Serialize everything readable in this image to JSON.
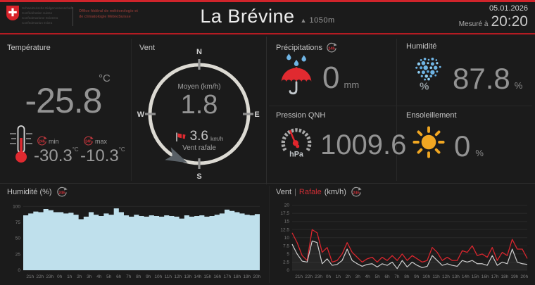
{
  "header": {
    "confederation_lines": [
      "Schweizerische Eidgenossenschaft",
      "Confédération suisse",
      "Confederazione Svizzera",
      "Confederaziun svizra"
    ],
    "office_lines": [
      "Office fédéral de météorologie et",
      "de climatologie MétéoSuisse"
    ],
    "station_name": "La Brévine",
    "altitude_icon": "mountain-triangle",
    "altitude": "1050m",
    "date": "05.01.2026",
    "measured_label": "Mesuré à",
    "measured_time": "20:20"
  },
  "panels": {
    "temperature": {
      "title": "Température",
      "unit": "°C",
      "value": "-25.8",
      "badge": "24h",
      "min_label": "min",
      "max_label": "max",
      "min_value": "-30.3",
      "min_unit": "°C",
      "max_value": "-10.3",
      "max_unit": "°C"
    },
    "wind": {
      "title": "Vent",
      "mean_label": "Moyen (km/h)",
      "mean_value": "1.8",
      "gust_value": "3.6",
      "gust_unit": "km/h",
      "gust_label": "Vent rafale",
      "compass": {
        "n": "N",
        "e": "E",
        "s": "S",
        "w": "W"
      }
    },
    "precipitation": {
      "title": "Précipitations",
      "badge": "24h",
      "value": "0",
      "unit": "mm"
    },
    "humidity": {
      "title": "Humidité",
      "value": "87.8",
      "unit": "%",
      "icon_percent": "%"
    },
    "pressure": {
      "title": "Pression QNH",
      "value": "1009.6",
      "gauge_unit": "hPa"
    },
    "sunshine": {
      "title": "Ensoleillement",
      "value": "0",
      "unit": "%"
    }
  },
  "colors": {
    "accent_red": "#d0242b",
    "chart_red": "#d8262e",
    "chart_gray": "#cfcfcf",
    "humidity_fill": "#bfe0ec",
    "sun_yellow": "#f1a722",
    "drop_blue": "#6fb4e4",
    "big_number_gray": "#939393"
  },
  "chart_data": [
    {
      "id": "humidity-history",
      "type": "area",
      "title": "Humidité (%)",
      "badge": "24h",
      "x": [
        "21h",
        "22h",
        "23h",
        "0h",
        "1h",
        "2h",
        "3h",
        "4h",
        "5h",
        "6h",
        "7h",
        "8h",
        "9h",
        "10h",
        "11h",
        "12h",
        "13h",
        "14h",
        "15h",
        "16h",
        "17h",
        "18h",
        "19h",
        "20h"
      ],
      "yticks": [
        0,
        25,
        50,
        75,
        100
      ],
      "ylim": [
        0,
        107
      ],
      "fill_color": "#bfe0ec",
      "values": [
        86,
        89,
        92,
        91,
        96,
        94,
        91,
        91,
        89,
        90,
        87,
        80,
        84,
        91,
        87,
        85,
        89,
        87,
        97,
        91,
        86,
        84,
        87,
        85,
        84,
        86,
        85,
        84,
        86,
        85,
        84,
        81,
        86,
        84,
        85,
        86,
        84,
        85,
        87,
        89,
        95,
        93,
        91,
        89,
        87,
        86,
        88,
        88
      ]
    },
    {
      "id": "wind-history",
      "type": "line",
      "legend": {
        "series1": "Vent",
        "sep": "|",
        "series2": "Rafale",
        "unit": "(km/h)"
      },
      "badge": "24h",
      "x": [
        "21h",
        "22h",
        "23h",
        "0h",
        "1h",
        "2h",
        "3h",
        "4h",
        "5h",
        "6h",
        "7h",
        "8h",
        "9h",
        "10h",
        "11h",
        "12h",
        "13h",
        "14h",
        "15h",
        "16h",
        "17h",
        "18h",
        "19h",
        "20h"
      ],
      "yticks": [
        0,
        2.5,
        5,
        7.5,
        10,
        12.5,
        15,
        17.5,
        20
      ],
      "ylim": [
        0,
        21
      ],
      "series": [
        {
          "name": "Vent",
          "color": "#cfcfcf",
          "values": [
            8.0,
            5.0,
            2.8,
            2.5,
            9.0,
            8.5,
            2.0,
            3.5,
            1.5,
            1.8,
            3.0,
            6.5,
            3.0,
            2.0,
            1.2,
            1.8,
            2.0,
            1.0,
            2.0,
            1.5,
            2.5,
            0.5,
            3.0,
            1.0,
            2.5,
            1.5,
            0.8,
            1.2,
            4.5,
            3.0,
            1.5,
            2.0,
            1.5,
            1.2,
            3.0,
            2.5,
            3.0,
            2.0,
            2.0,
            1.5,
            4.5,
            1.5,
            2.5,
            2.0,
            6.5,
            2.5,
            2.0,
            1.8
          ]
        },
        {
          "name": "Rafale",
          "color": "#d8262e",
          "values": [
            11.5,
            8.5,
            4.5,
            3.0,
            12.5,
            11.5,
            5.5,
            7.0,
            2.5,
            3.0,
            5.0,
            8.5,
            5.5,
            4.0,
            2.5,
            3.5,
            4.0,
            2.5,
            4.0,
            3.0,
            4.5,
            3.0,
            5.0,
            3.0,
            4.5,
            3.5,
            2.5,
            3.0,
            7.0,
            5.5,
            3.0,
            4.0,
            3.0,
            3.0,
            6.0,
            5.5,
            7.5,
            4.5,
            5.0,
            4.0,
            7.0,
            3.0,
            5.5,
            4.5,
            9.5,
            6.5,
            6.5,
            3.6
          ]
        }
      ]
    }
  ]
}
